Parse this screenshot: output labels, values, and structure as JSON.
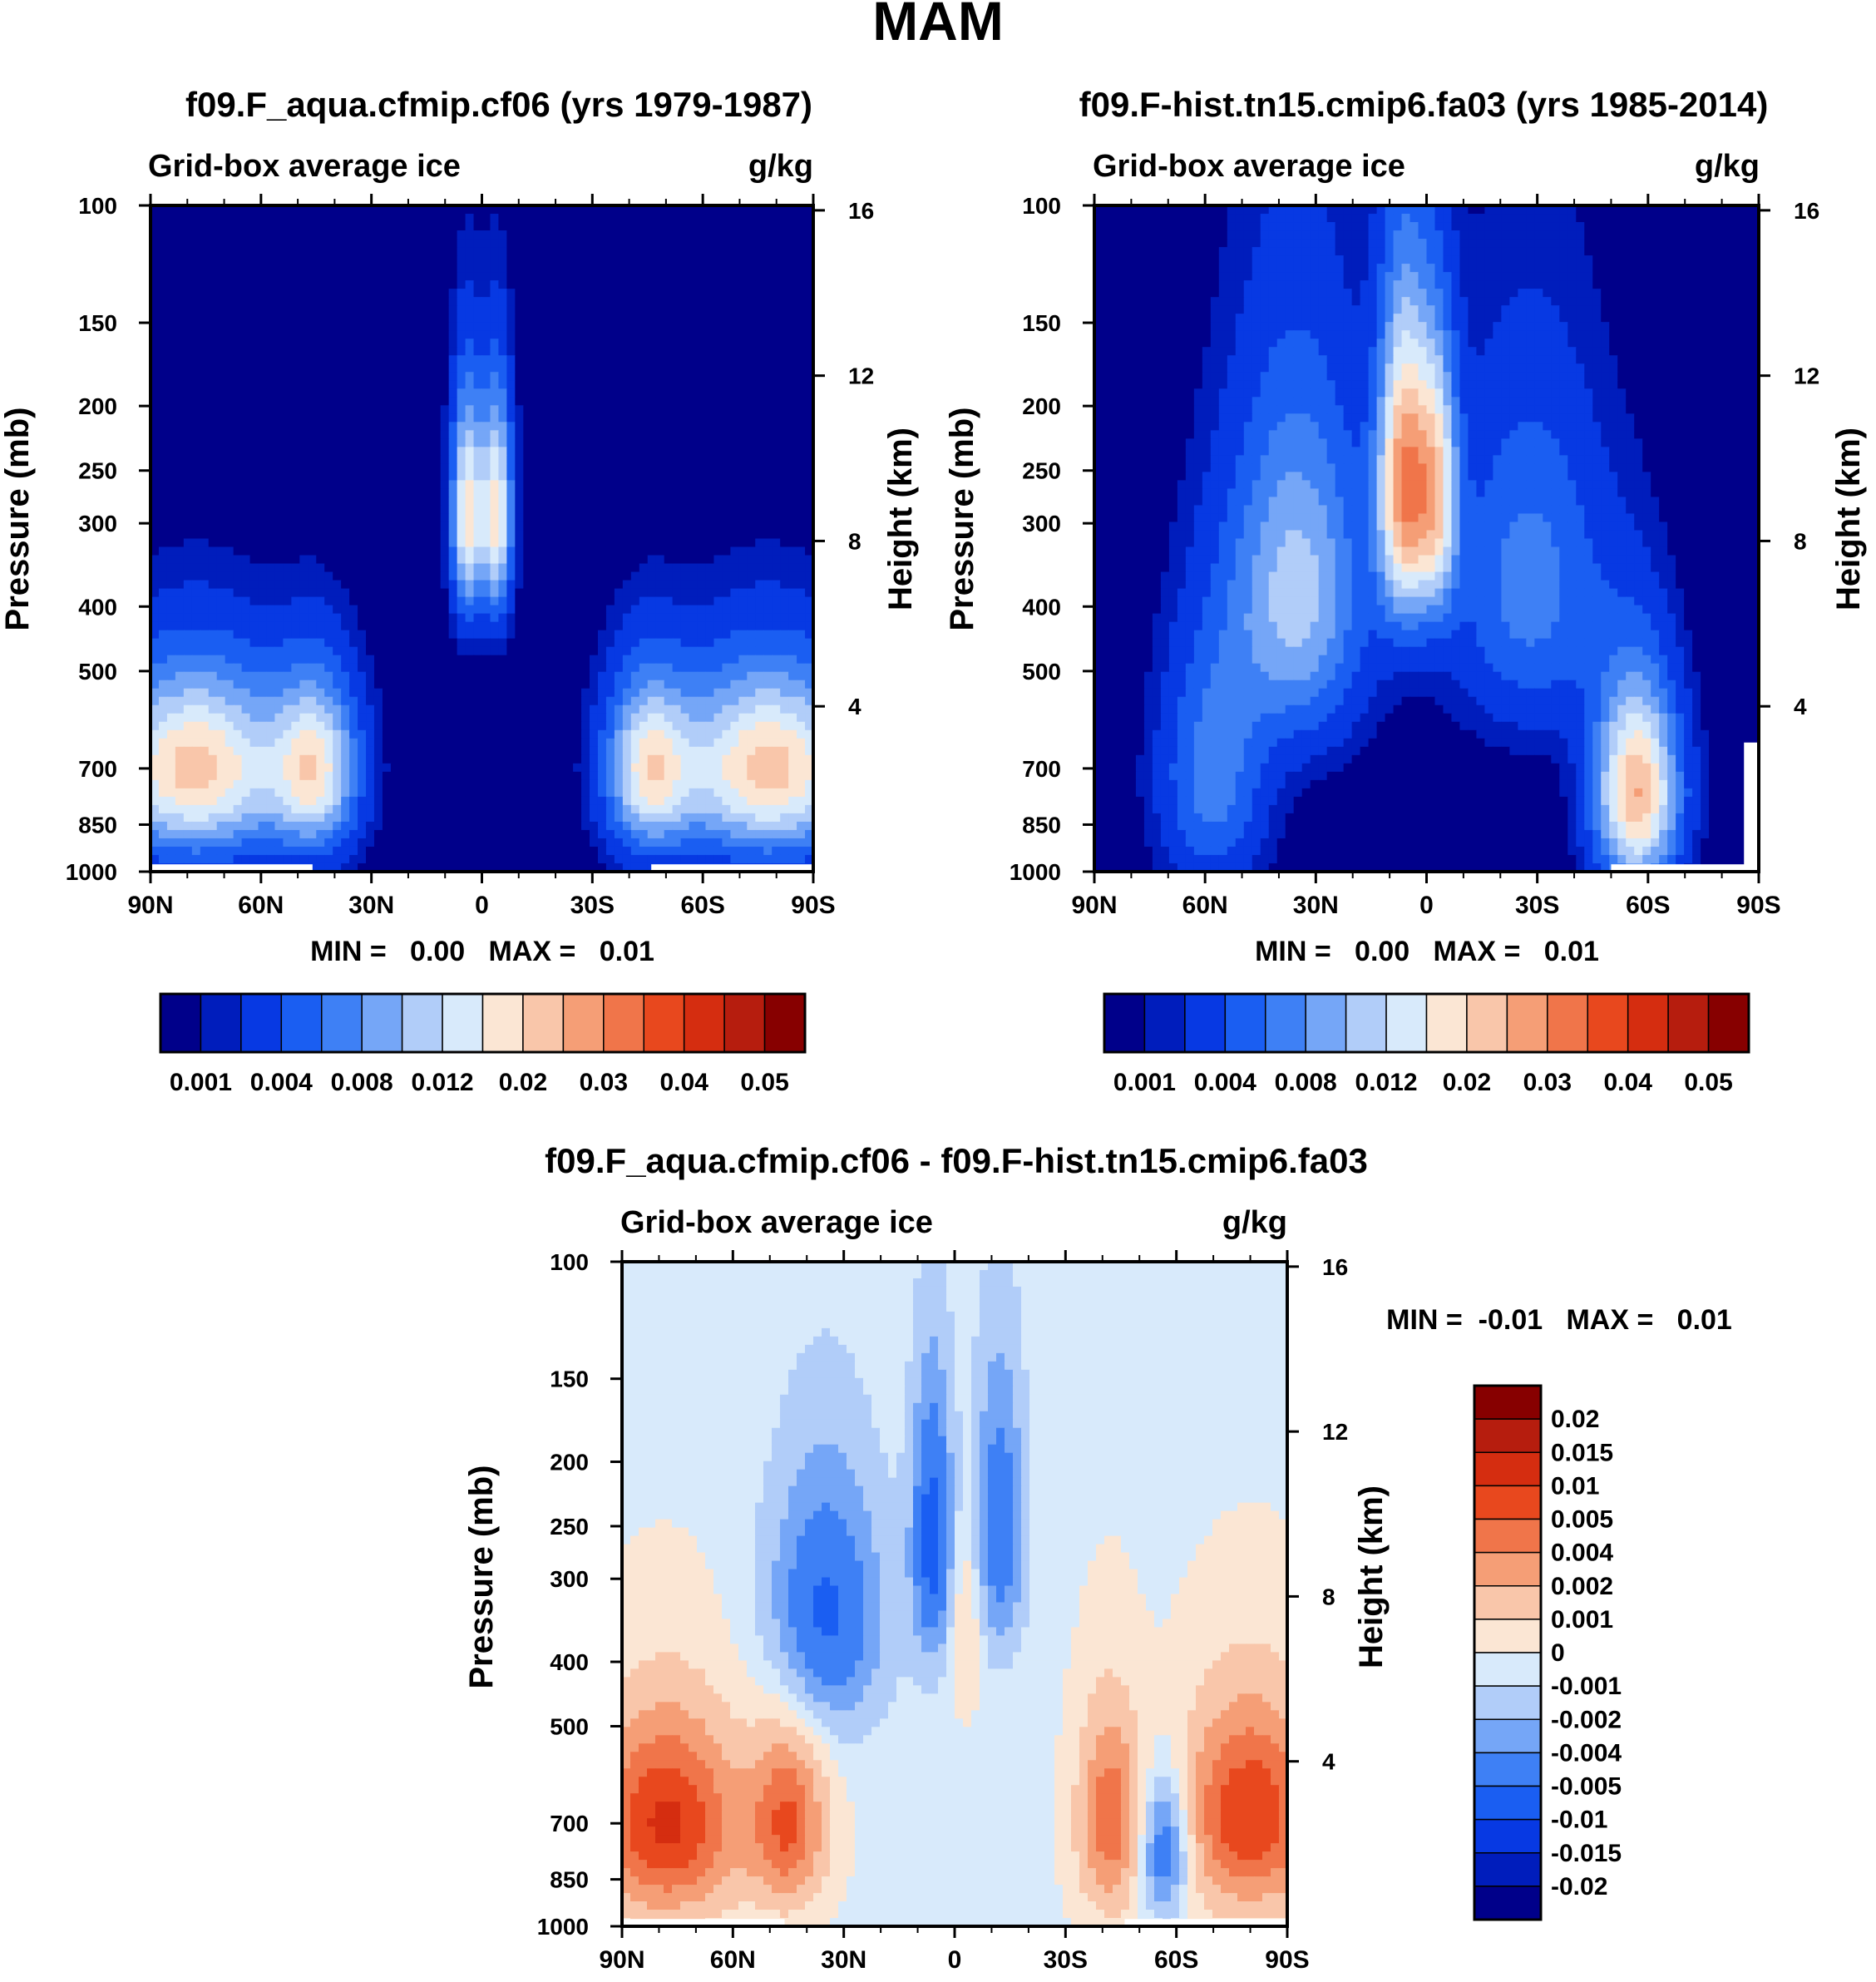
{
  "figure": {
    "title": "MAM"
  },
  "chart_data": [
    {
      "type": "heatmap",
      "title": "f09.F_aqua.cfmip.cf06 (yrs 1979-1987)",
      "left_label": "Grid-box average ice",
      "right_label": "g/kg",
      "ylabel": "Pressure (mb)",
      "ylabel_right": "Height (km)",
      "x_ticks": [
        "90N",
        "60N",
        "30N",
        "0",
        "30S",
        "60S",
        "90S"
      ],
      "y_ticks": [
        "100",
        "150",
        "200",
        "250",
        "300",
        "400",
        "500",
        "700",
        "850",
        "1000"
      ],
      "right_ticks": [
        "16",
        "12",
        "8",
        "4"
      ],
      "xlim": [
        90,
        -90
      ],
      "ylim": [
        1000,
        100
      ],
      "stats": "MIN =   0.00   MAX =   0.01",
      "colorbar_labels": [
        "0.001",
        "0.004",
        "0.008",
        "0.012",
        "0.02",
        "0.03",
        "0.04",
        "0.05"
      ],
      "blobs": [
        {
          "lat": 78,
          "p": 700,
          "amp": 0.0085,
          "sx": 18,
          "sp": 160
        },
        {
          "lat": 45,
          "p": 700,
          "amp": 0.0065,
          "sx": 8,
          "sp": 150
        },
        {
          "lat": -45,
          "p": 700,
          "amp": 0.0065,
          "sx": 8,
          "sp": 150
        },
        {
          "lat": -78,
          "p": 700,
          "amp": 0.0085,
          "sx": 18,
          "sp": 160
        },
        {
          "lat": 4,
          "p": 290,
          "amp": 0.0075,
          "sx": 3,
          "sp": 80
        },
        {
          "lat": -4,
          "p": 290,
          "amp": 0.0075,
          "sx": 3,
          "sp": 80
        }
      ]
    },
    {
      "type": "heatmap",
      "title": "f09.F-hist.tn15.cmip6.fa03 (yrs 1985-2014)",
      "left_label": "Grid-box average ice",
      "right_label": "g/kg",
      "ylabel": "Pressure (mb)",
      "ylabel_right": "Height (km)",
      "x_ticks": [
        "90N",
        "60N",
        "30N",
        "0",
        "30S",
        "60S",
        "90S"
      ],
      "y_ticks": [
        "100",
        "150",
        "200",
        "250",
        "300",
        "400",
        "500",
        "700",
        "850",
        "1000"
      ],
      "right_ticks": [
        "16",
        "12",
        "8",
        "4"
      ],
      "xlim": [
        90,
        -90
      ],
      "ylim": [
        1000,
        100
      ],
      "stats": "MIN =   0.00   MAX =   0.01",
      "colorbar_labels": [
        "0.001",
        "0.004",
        "0.008",
        "0.012",
        "0.02",
        "0.03",
        "0.04",
        "0.05"
      ],
      "blobs": [
        {
          "lat": 6,
          "p": 260,
          "amp": 0.0095,
          "sx": 5,
          "sp": 100
        },
        {
          "lat": -3,
          "p": 270,
          "amp": 0.0065,
          "sx": 4,
          "sp": 90
        },
        {
          "lat": 35,
          "p": 380,
          "amp": 0.0055,
          "sx": 13,
          "sp": 160
        },
        {
          "lat": -28,
          "p": 370,
          "amp": 0.0035,
          "sx": 15,
          "sp": 150
        },
        {
          "lat": 58,
          "p": 720,
          "amp": 0.0035,
          "sx": 10,
          "sp": 220
        },
        {
          "lat": -57,
          "p": 760,
          "amp": 0.009,
          "sx": 8,
          "sp": 190
        }
      ]
    },
    {
      "type": "heatmap",
      "title": "f09.F_aqua.cfmip.cf06 - f09.F-hist.tn15.cmip6.fa03",
      "left_label": "Grid-box average ice",
      "right_label": "g/kg",
      "ylabel": "Pressure (mb)",
      "ylabel_right": "Height (km)",
      "x_ticks": [
        "90N",
        "60N",
        "30N",
        "0",
        "30S",
        "60S",
        "90S"
      ],
      "y_ticks": [
        "100",
        "150",
        "200",
        "250",
        "300",
        "400",
        "500",
        "700",
        "850",
        "1000"
      ],
      "right_ticks": [
        "16",
        "12",
        "8",
        "4"
      ],
      "xlim": [
        90,
        -90
      ],
      "ylim": [
        1000,
        100
      ],
      "stats": "MIN =  -0.01   MAX =   0.01",
      "colorbar_labels": [
        "0.02",
        "0.015",
        "0.01",
        "0.005",
        "0.004",
        "0.002",
        "0.001",
        "0",
        "-0.001",
        "-0.002",
        "-0.004",
        "-0.005",
        "-0.01",
        "-0.015",
        "-0.02"
      ],
      "blobs": [
        {
          "lat": 78,
          "p": 700,
          "amp": 0.0105,
          "sx": 14,
          "sp": 170
        },
        {
          "lat": 45,
          "p": 700,
          "amp": 0.008,
          "sx": 7,
          "sp": 150
        },
        {
          "lat": -42,
          "p": 690,
          "amp": 0.0075,
          "sx": 6,
          "sp": 170
        },
        {
          "lat": -80,
          "p": 680,
          "amp": 0.01,
          "sx": 13,
          "sp": 170
        },
        {
          "lat": -57,
          "p": 760,
          "amp": -0.007,
          "sx": 5,
          "sp": 130
        },
        {
          "lat": 35,
          "p": 340,
          "amp": -0.0065,
          "sx": 11,
          "sp": 110
        },
        {
          "lat": 6,
          "p": 260,
          "amp": -0.007,
          "sx": 4,
          "sp": 90
        },
        {
          "lat": -12,
          "p": 250,
          "amp": -0.0055,
          "sx": 5,
          "sp": 90
        },
        {
          "lat": -3,
          "p": 340,
          "amp": 0.0025,
          "sx": 3,
          "sp": 80
        }
      ]
    }
  ],
  "palettes": {
    "seq": [
      "#00008a",
      "#001dbc",
      "#0739e3",
      "#1a5ef2",
      "#3e80f5",
      "#75a6f7",
      "#b1cdf9",
      "#d8eafb",
      "#fbe6d4",
      "#f9c6aa",
      "#f59e76",
      "#f0754a",
      "#e8481e",
      "#d52d10",
      "#b61d0e",
      "#870000"
    ],
    "div": [
      "#00008a",
      "#001dbc",
      "#0739e3",
      "#1a5ef2",
      "#3e80f5",
      "#75a6f7",
      "#b1cdf9",
      "#d8eafb",
      "#fbe6d4",
      "#f9c6aa",
      "#f59e76",
      "#f0754a",
      "#e8481e",
      "#d52d10",
      "#b61d0e",
      "#870000"
    ]
  }
}
